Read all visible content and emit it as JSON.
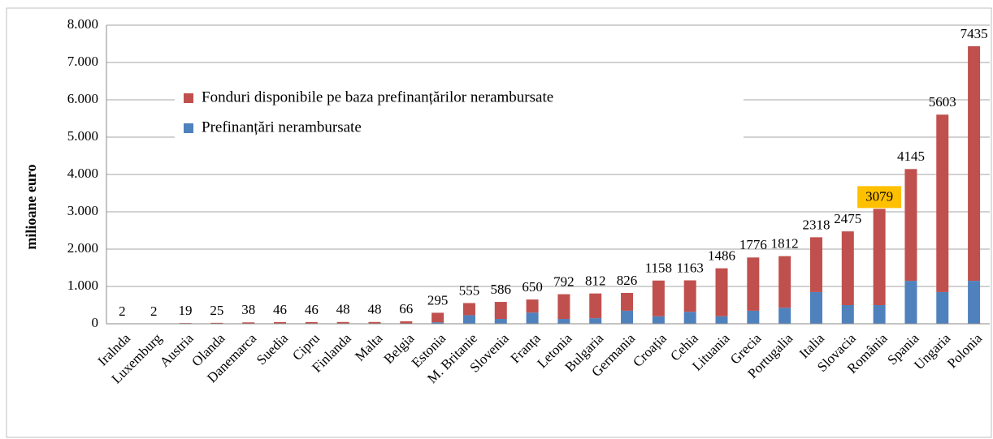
{
  "chart_data": {
    "type": "stacked_bar",
    "ylabel": "milioane euro",
    "categories": [
      "Iralnda",
      "Luxemburg",
      "Austria",
      "Olanda",
      "Danemarca",
      "Suedia",
      "Cipru",
      "Finlanda",
      "Malta",
      "Belgia",
      "Estonia",
      "M. Britanie",
      "Slovenia",
      "Franța",
      "Letonia",
      "Bulgaria",
      "Germania",
      "Croația",
      "Cehia",
      "Lituania",
      "Grecia",
      "Portugalia",
      "Italia",
      "Slovacia",
      "România",
      "Spania",
      "Ungaria",
      "Polonia"
    ],
    "series": [
      {
        "name": "Prefinanțări nerambursate",
        "color": "#4f81bd",
        "values": [
          0,
          0,
          5,
          5,
          10,
          10,
          0,
          10,
          0,
          10,
          40,
          230,
          130,
          300,
          130,
          150,
          350,
          200,
          320,
          200,
          350,
          430,
          850,
          500,
          500,
          1150,
          850,
          1150
        ]
      },
      {
        "name": "Fonduri disponibile pe baza prefinanțărilor nerambursate",
        "color": "#c0504d",
        "values": [
          2,
          2,
          14,
          20,
          28,
          36,
          46,
          38,
          48,
          56,
          255,
          325,
          456,
          350,
          662,
          662,
          476,
          958,
          843,
          1286,
          1426,
          1382,
          1468,
          1975,
          2579,
          2995,
          4753,
          6285
        ]
      }
    ],
    "totals": [
      2,
      2,
      19,
      25,
      38,
      46,
      46,
      48,
      48,
      66,
      295,
      555,
      586,
      650,
      792,
      812,
      826,
      1158,
      1163,
      1486,
      1776,
      1812,
      2318,
      2475,
      3079,
      4145,
      5603,
      7435
    ],
    "highlight": {
      "index": 24,
      "color": "#ffc000"
    },
    "ylim": [
      0,
      8000
    ],
    "yticks": [
      0,
      {
        "value": 1000,
        "label": "1.000"
      },
      {
        "value": 2000,
        "label": "2.000"
      },
      {
        "value": 3000,
        "label": "3.000"
      },
      {
        "value": 4000,
        "label": "4.000"
      },
      {
        "value": 5000,
        "label": "5.000"
      },
      {
        "value": 6000,
        "label": "6.000"
      },
      {
        "value": 7000,
        "label": "7.000"
      },
      {
        "value": 8000,
        "label": "8.000"
      }
    ],
    "grid": true
  }
}
